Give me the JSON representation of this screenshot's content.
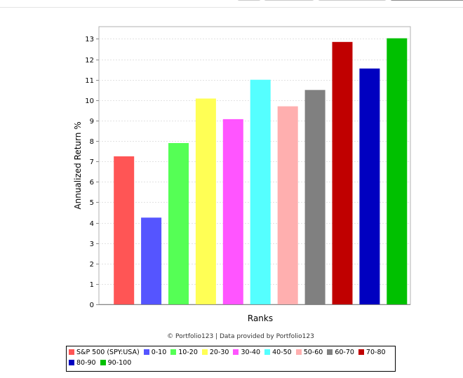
{
  "chart_data": {
    "type": "bar",
    "xlabel": "Ranks",
    "ylabel": "Annualized Return %",
    "ylim": [
      0,
      13.6
    ],
    "yticks": [
      0,
      1,
      2,
      3,
      4,
      5,
      6,
      7,
      8,
      9,
      10,
      11,
      12,
      13
    ],
    "grid": true,
    "legend_position": "bottom",
    "categories": [
      "S&P 500 (SPY:USA)",
      "0-10",
      "10-20",
      "20-30",
      "30-40",
      "40-50",
      "50-60",
      "60-70",
      "70-80",
      "80-90",
      "90-100"
    ],
    "values": [
      7.25,
      4.25,
      7.9,
      10.08,
      9.07,
      11.0,
      9.7,
      10.5,
      12.85,
      11.55,
      13.03
    ],
    "colors": [
      "#ff5555",
      "#5555ff",
      "#55ff55",
      "#ffff55",
      "#ff55ff",
      "#55ffff",
      "#ffafaf",
      "#808080",
      "#c00000",
      "#0000c0",
      "#00c000"
    ]
  },
  "credit": "© Portfolio123 | Data provided by Portfolio123"
}
